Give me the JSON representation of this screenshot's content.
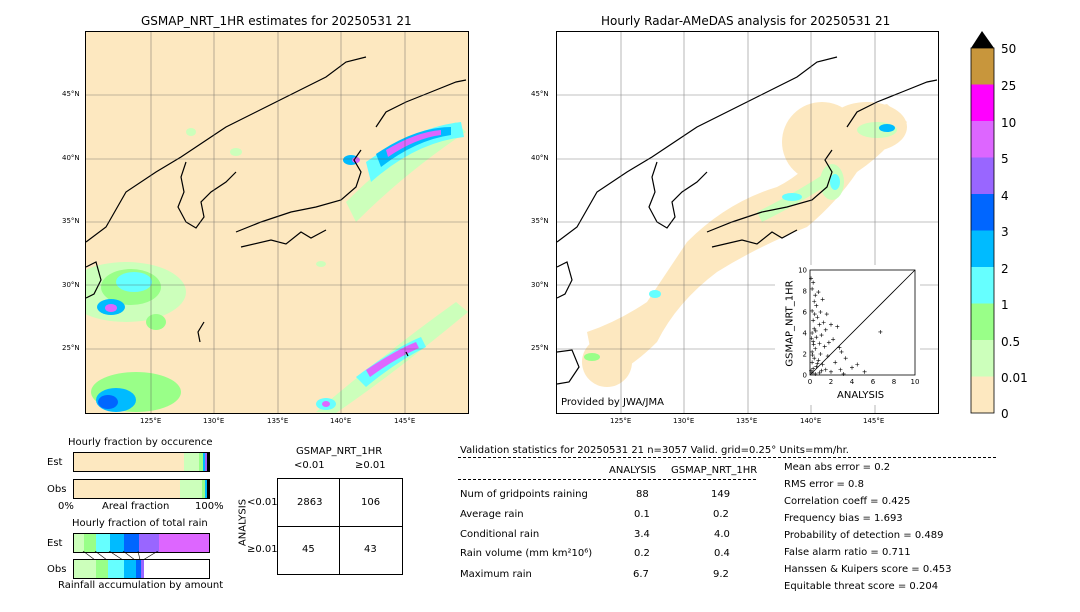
{
  "left_map": {
    "title": "GSMAP_NRT_1HR estimates for 20250531 21",
    "lat_labels": [
      "45°N",
      "40°N",
      "35°N",
      "30°N",
      "25°N"
    ],
    "lon_labels": [
      "125°E",
      "130°E",
      "135°E",
      "140°E",
      "145°E"
    ]
  },
  "right_map": {
    "title": "Hourly Radar-AMeDAS analysis for 20250531 21",
    "lat_labels": [
      "45°N",
      "40°N",
      "35°N",
      "30°N",
      "25°N"
    ],
    "lon_labels": [
      "125°E",
      "130°E",
      "135°E",
      "140°E",
      "145°E"
    ],
    "credit": "Provided by JWA/JMA",
    "scatter": {
      "xlabel": "ANALYSIS",
      "ylabel": "GSMAP_NRT_1HR",
      "x_ticks": [
        "0",
        "2",
        "4",
        "6",
        "8",
        "10"
      ],
      "y_ticks": [
        "0",
        "2",
        "4",
        "6",
        "8",
        "10"
      ]
    }
  },
  "colorbar": {
    "labels": [
      "50",
      "25",
      "10",
      "5",
      "4",
      "3",
      "2",
      "1",
      "0.5",
      "0.01",
      "0"
    ],
    "colors": [
      "#c8963c",
      "#ff00ff",
      "#dd66ff",
      "#9966ff",
      "#0066ff",
      "#00bbff",
      "#66ffff",
      "#99ff88",
      "#ccffbb",
      "#fde8c0"
    ]
  },
  "fraction": {
    "occurrence_title": "Hourly fraction by occurence",
    "total_title": "Hourly fraction of total rain",
    "row_est": "Est",
    "row_obs": "Obs",
    "axis_left": "0%",
    "axis_mid": "Areal fraction",
    "axis_right": "100%",
    "bottom_label": "Rainfall accumulation by amount"
  },
  "contingency": {
    "title": "GSMAP_NRT_1HR",
    "col_lt": "<0.01",
    "col_ge": "≥0.01",
    "row_axis": "ANALYSIS",
    "row_lt": "<0.01",
    "row_ge": "≥0.01",
    "cells": [
      "2863",
      "106",
      "45",
      "43"
    ]
  },
  "validation": {
    "header": "Validation statistics for 20250531 21  n=3057 Valid. grid=0.25° Units=mm/hr.",
    "col_analysis": "ANALYSIS",
    "col_gsmap": "GSMAP_NRT_1HR",
    "rows": [
      {
        "label": "Num of gridpoints raining",
        "analysis": "88",
        "gsmap": "149"
      },
      {
        "label": "Average rain",
        "analysis": "0.1",
        "gsmap": "0.2"
      },
      {
        "label": "Conditional rain",
        "analysis": "3.4",
        "gsmap": "4.0"
      },
      {
        "label": "Rain volume (mm km²10⁶)",
        "analysis": "0.2",
        "gsmap": "0.4"
      },
      {
        "label": "Maximum rain",
        "analysis": "6.7",
        "gsmap": "9.2"
      }
    ],
    "scores": [
      "Mean abs error =    0.2",
      "RMS error =    0.8",
      "Correlation coeff =  0.425",
      "Frequency bias =  1.693",
      "Probability of detection =  0.489",
      "False alarm ratio =  0.711",
      "Hanssen & Kuipers score =  0.453",
      "Equitable threat score =  0.204"
    ]
  },
  "chart_data": {
    "type": "scatter",
    "xlabel": "ANALYSIS",
    "ylabel": "GSMAP_NRT_1HR",
    "xlim": [
      0,
      10
    ],
    "ylim": [
      0,
      10
    ],
    "points": [
      [
        0.1,
        9.2
      ],
      [
        0.3,
        8.8
      ],
      [
        0.2,
        8.2
      ],
      [
        0.5,
        7.6
      ],
      [
        0.8,
        7.9
      ],
      [
        0.4,
        7.0
      ],
      [
        1.2,
        7.2
      ],
      [
        0.6,
        6.6
      ],
      [
        0.2,
        6.1
      ],
      [
        1.0,
        6.0
      ],
      [
        1.6,
        5.8
      ],
      [
        0.7,
        5.5
      ],
      [
        0.3,
        5.2
      ],
      [
        1.3,
        5.0
      ],
      [
        0.9,
        4.8
      ],
      [
        2.0,
        4.8
      ],
      [
        0.4,
        4.4
      ],
      [
        1.5,
        4.3
      ],
      [
        2.6,
        4.6
      ],
      [
        0.2,
        4.0
      ],
      [
        1.1,
        3.8
      ],
      [
        0.6,
        3.6
      ],
      [
        2.2,
        3.4
      ],
      [
        1.8,
        3.1
      ],
      [
        0.3,
        3.2
      ],
      [
        0.9,
        3.0
      ],
      [
        1.4,
        2.7
      ],
      [
        2.8,
        2.6
      ],
      [
        0.5,
        2.5
      ],
      [
        3.0,
        2.2
      ],
      [
        0.2,
        2.2
      ],
      [
        1.0,
        2.0
      ],
      [
        1.7,
        1.8
      ],
      [
        3.4,
        1.6
      ],
      [
        0.4,
        1.6
      ],
      [
        0.8,
        1.4
      ],
      [
        2.4,
        1.2
      ],
      [
        0.2,
        1.2
      ],
      [
        1.2,
        1.0
      ],
      [
        0.6,
        0.8
      ],
      [
        4.0,
        0.7
      ],
      [
        0.3,
        0.6
      ],
      [
        1.5,
        0.5
      ],
      [
        2.0,
        0.3
      ],
      [
        0.1,
        0.4
      ],
      [
        0.9,
        0.2
      ],
      [
        3.2,
        0.1
      ],
      [
        5.2,
        0.3
      ],
      [
        0.5,
        0.1
      ],
      [
        0.2,
        0.2
      ],
      [
        6.7,
        4.1
      ],
      [
        4.5,
        1.0
      ],
      [
        2.9,
        0.5
      ],
      [
        1.1,
        0.4
      ],
      [
        0.7,
        1.1
      ],
      [
        0.15,
        3.5
      ],
      [
        0.35,
        2.9
      ],
      [
        0.25,
        1.9
      ],
      [
        0.45,
        5.8
      ],
      [
        0.55,
        4.2
      ]
    ]
  }
}
